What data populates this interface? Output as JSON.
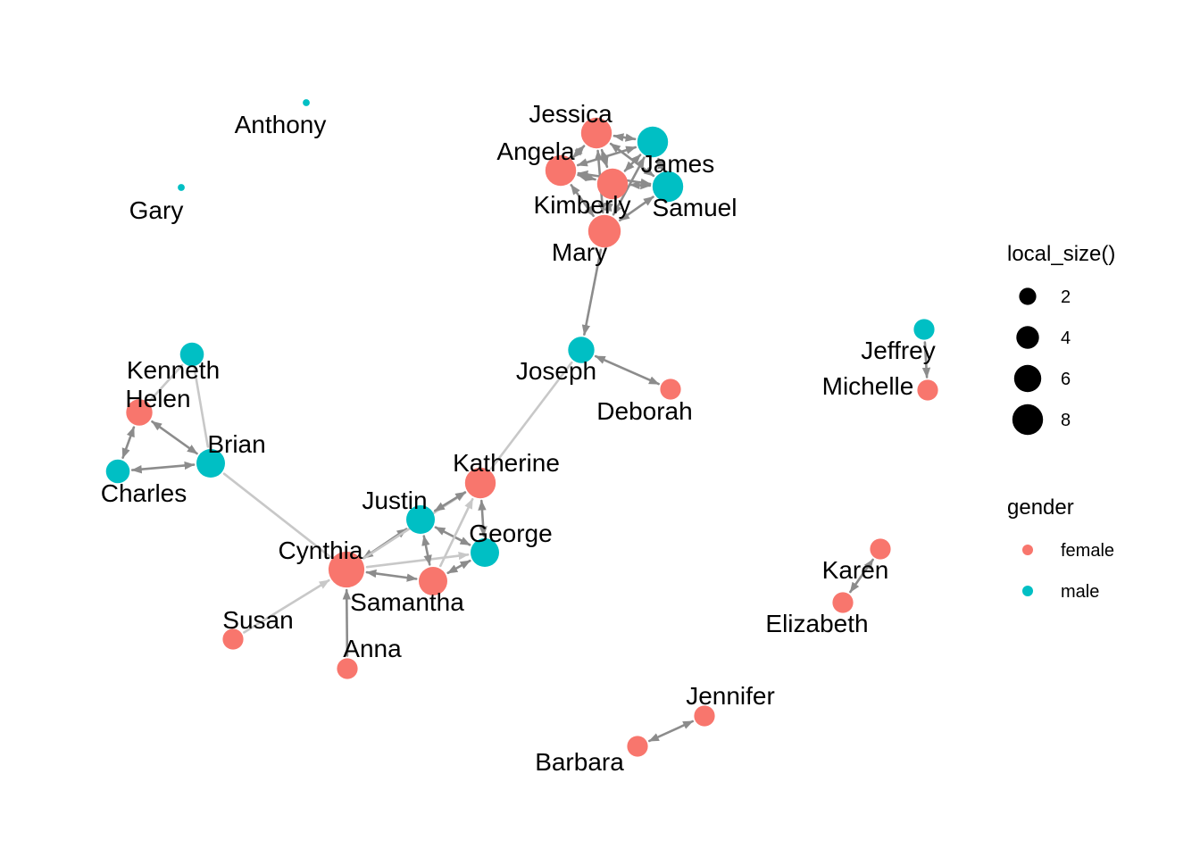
{
  "colors": {
    "female": "#F8766D",
    "male": "#00BFC4",
    "edge_dark": "#8c8c8c",
    "edge_light": "#c8c8c8",
    "legend_dot": "#000000"
  },
  "nodes": [
    {
      "id": "Anthony",
      "gender": "male",
      "size": 1
    },
    {
      "id": "Gary",
      "gender": "male",
      "size": 1
    },
    {
      "id": "Jessica",
      "gender": "female",
      "size": 6
    },
    {
      "id": "James",
      "gender": "male",
      "size": 6
    },
    {
      "id": "Angela",
      "gender": "female",
      "size": 6
    },
    {
      "id": "Kimberly",
      "gender": "female",
      "size": 6
    },
    {
      "id": "Samuel",
      "gender": "male",
      "size": 6
    },
    {
      "id": "Mary",
      "gender": "female",
      "size": 7
    },
    {
      "id": "Joseph",
      "gender": "male",
      "size": 4
    },
    {
      "id": "Deborah",
      "gender": "female",
      "size": 2
    },
    {
      "id": "Jeffrey",
      "gender": "male",
      "size": 2
    },
    {
      "id": "Michelle",
      "gender": "female",
      "size": 2
    },
    {
      "id": "Kenneth",
      "gender": "male",
      "size": 3
    },
    {
      "id": "Helen",
      "gender": "female",
      "size": 4
    },
    {
      "id": "Brian",
      "gender": "male",
      "size": 5
    },
    {
      "id": "Charles",
      "gender": "male",
      "size": 3
    },
    {
      "id": "Katherine",
      "gender": "female",
      "size": 6
    },
    {
      "id": "Justin",
      "gender": "male",
      "size": 5
    },
    {
      "id": "George",
      "gender": "male",
      "size": 5
    },
    {
      "id": "Cynthia",
      "gender": "female",
      "size": 9
    },
    {
      "id": "Samantha",
      "gender": "female",
      "size": 5
    },
    {
      "id": "Susan",
      "gender": "female",
      "size": 2
    },
    {
      "id": "Anna",
      "gender": "female",
      "size": 2
    },
    {
      "id": "Karen",
      "gender": "female",
      "size": 2
    },
    {
      "id": "Elizabeth",
      "gender": "female",
      "size": 2
    },
    {
      "id": "Jennifer",
      "gender": "female",
      "size": 2
    },
    {
      "id": "Barbara",
      "gender": "female",
      "size": 2
    }
  ],
  "edges": [
    {
      "from": "Jessica",
      "to": "James",
      "dir": "both",
      "tone": "dark"
    },
    {
      "from": "Jessica",
      "to": "Angela",
      "dir": "both",
      "tone": "dark"
    },
    {
      "from": "Jessica",
      "to": "Kimberly",
      "dir": "both",
      "tone": "dark"
    },
    {
      "from": "Jessica",
      "to": "Samuel",
      "dir": "both",
      "tone": "dark"
    },
    {
      "from": "Jessica",
      "to": "Mary",
      "dir": "both",
      "tone": "dark"
    },
    {
      "from": "James",
      "to": "Angela",
      "dir": "both",
      "tone": "dark"
    },
    {
      "from": "James",
      "to": "Kimberly",
      "dir": "both",
      "tone": "dark"
    },
    {
      "from": "James",
      "to": "Samuel",
      "dir": "both",
      "tone": "dark"
    },
    {
      "from": "James",
      "to": "Mary",
      "dir": "both",
      "tone": "dark"
    },
    {
      "from": "Angela",
      "to": "Kimberly",
      "dir": "both",
      "tone": "dark"
    },
    {
      "from": "Angela",
      "to": "Samuel",
      "dir": "both",
      "tone": "dark"
    },
    {
      "from": "Angela",
      "to": "Mary",
      "dir": "both",
      "tone": "dark"
    },
    {
      "from": "Kimberly",
      "to": "Samuel",
      "dir": "both",
      "tone": "dark"
    },
    {
      "from": "Kimberly",
      "to": "Mary",
      "dir": "both",
      "tone": "dark"
    },
    {
      "from": "Samuel",
      "to": "Mary",
      "dir": "both",
      "tone": "dark"
    },
    {
      "from": "Mary",
      "to": "Joseph",
      "dir": "forward",
      "tone": "dark"
    },
    {
      "from": "Joseph",
      "to": "Deborah",
      "dir": "both",
      "tone": "dark"
    },
    {
      "from": "Jeffrey",
      "to": "Michelle",
      "dir": "forward",
      "tone": "dark"
    },
    {
      "from": "Kenneth",
      "to": "Brian",
      "dir": "none",
      "tone": "light"
    },
    {
      "from": "Kenneth",
      "to": "Helen",
      "dir": "none",
      "tone": "light"
    },
    {
      "from": "Helen",
      "to": "Brian",
      "dir": "both",
      "tone": "dark"
    },
    {
      "from": "Helen",
      "to": "Charles",
      "dir": "both",
      "tone": "dark"
    },
    {
      "from": "Charles",
      "to": "Brian",
      "dir": "both",
      "tone": "dark"
    },
    {
      "from": "Brian",
      "to": "Cynthia",
      "dir": "none",
      "tone": "light"
    },
    {
      "from": "Joseph",
      "to": "Katherine",
      "dir": "none",
      "tone": "light"
    },
    {
      "from": "Cynthia",
      "to": "Justin",
      "dir": "both",
      "tone": "dark"
    },
    {
      "from": "Cynthia",
      "to": "Samantha",
      "dir": "both",
      "tone": "dark"
    },
    {
      "from": "Cynthia",
      "to": "George",
      "dir": "forward",
      "tone": "light"
    },
    {
      "from": "Cynthia",
      "to": "Katherine",
      "dir": "forward",
      "tone": "light"
    },
    {
      "from": "Justin",
      "to": "Katherine",
      "dir": "both",
      "tone": "dark"
    },
    {
      "from": "Justin",
      "to": "George",
      "dir": "both",
      "tone": "dark"
    },
    {
      "from": "Justin",
      "to": "Samantha",
      "dir": "both",
      "tone": "dark"
    },
    {
      "from": "Samantha",
      "to": "George",
      "dir": "both",
      "tone": "dark"
    },
    {
      "from": "Samantha",
      "to": "Katherine",
      "dir": "forward",
      "tone": "light"
    },
    {
      "from": "George",
      "to": "Katherine",
      "dir": "both",
      "tone": "dark"
    },
    {
      "from": "Susan",
      "to": "Cynthia",
      "dir": "forward",
      "tone": "light"
    },
    {
      "from": "Anna",
      "to": "Cynthia",
      "dir": "forward",
      "tone": "dark"
    },
    {
      "from": "Elizabeth",
      "to": "Karen",
      "dir": "both",
      "tone": "dark"
    },
    {
      "from": "Barbara",
      "to": "Jennifer",
      "dir": "both",
      "tone": "dark"
    }
  ],
  "legend": {
    "size_title": "local_size()",
    "size_items": [
      {
        "label": "2",
        "value": 2
      },
      {
        "label": "4",
        "value": 4
      },
      {
        "label": "6",
        "value": 6
      },
      {
        "label": "8",
        "value": 8
      }
    ],
    "gender_title": "gender",
    "gender_items": [
      {
        "label": "female",
        "key": "female"
      },
      {
        "label": "male",
        "key": "male"
      }
    ]
  }
}
